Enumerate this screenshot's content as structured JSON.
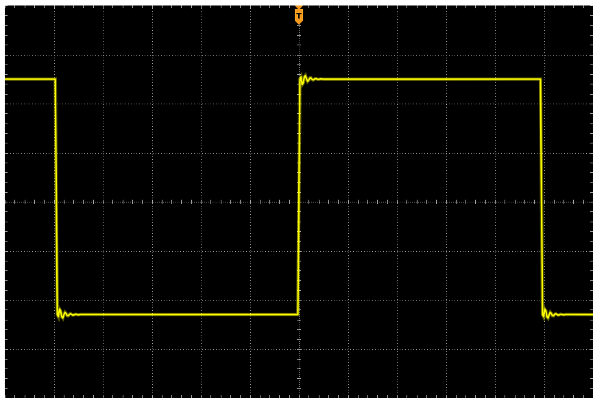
{
  "oscilloscope": {
    "background_color": "#000000",
    "grid_color": "#a8a8a8",
    "trace_color": "#ffff00",
    "trigger": {
      "label": "T",
      "color": "#f39a1e",
      "icon": "trigger-marker-icon"
    },
    "grid": {
      "horizontal_divisions": 12,
      "vertical_divisions": 8,
      "minor_ticks_per_division": 5
    },
    "waveform": {
      "shape": "square",
      "high_level_div": 2.5,
      "low_level_div": -2.3,
      "edges_time_div": [
        {
          "t": -4.95,
          "direction": "falling"
        },
        {
          "t": 0.0,
          "direction": "rising"
        },
        {
          "t": 4.95,
          "direction": "falling"
        }
      ],
      "start_level": "high",
      "ringing": true
    }
  }
}
